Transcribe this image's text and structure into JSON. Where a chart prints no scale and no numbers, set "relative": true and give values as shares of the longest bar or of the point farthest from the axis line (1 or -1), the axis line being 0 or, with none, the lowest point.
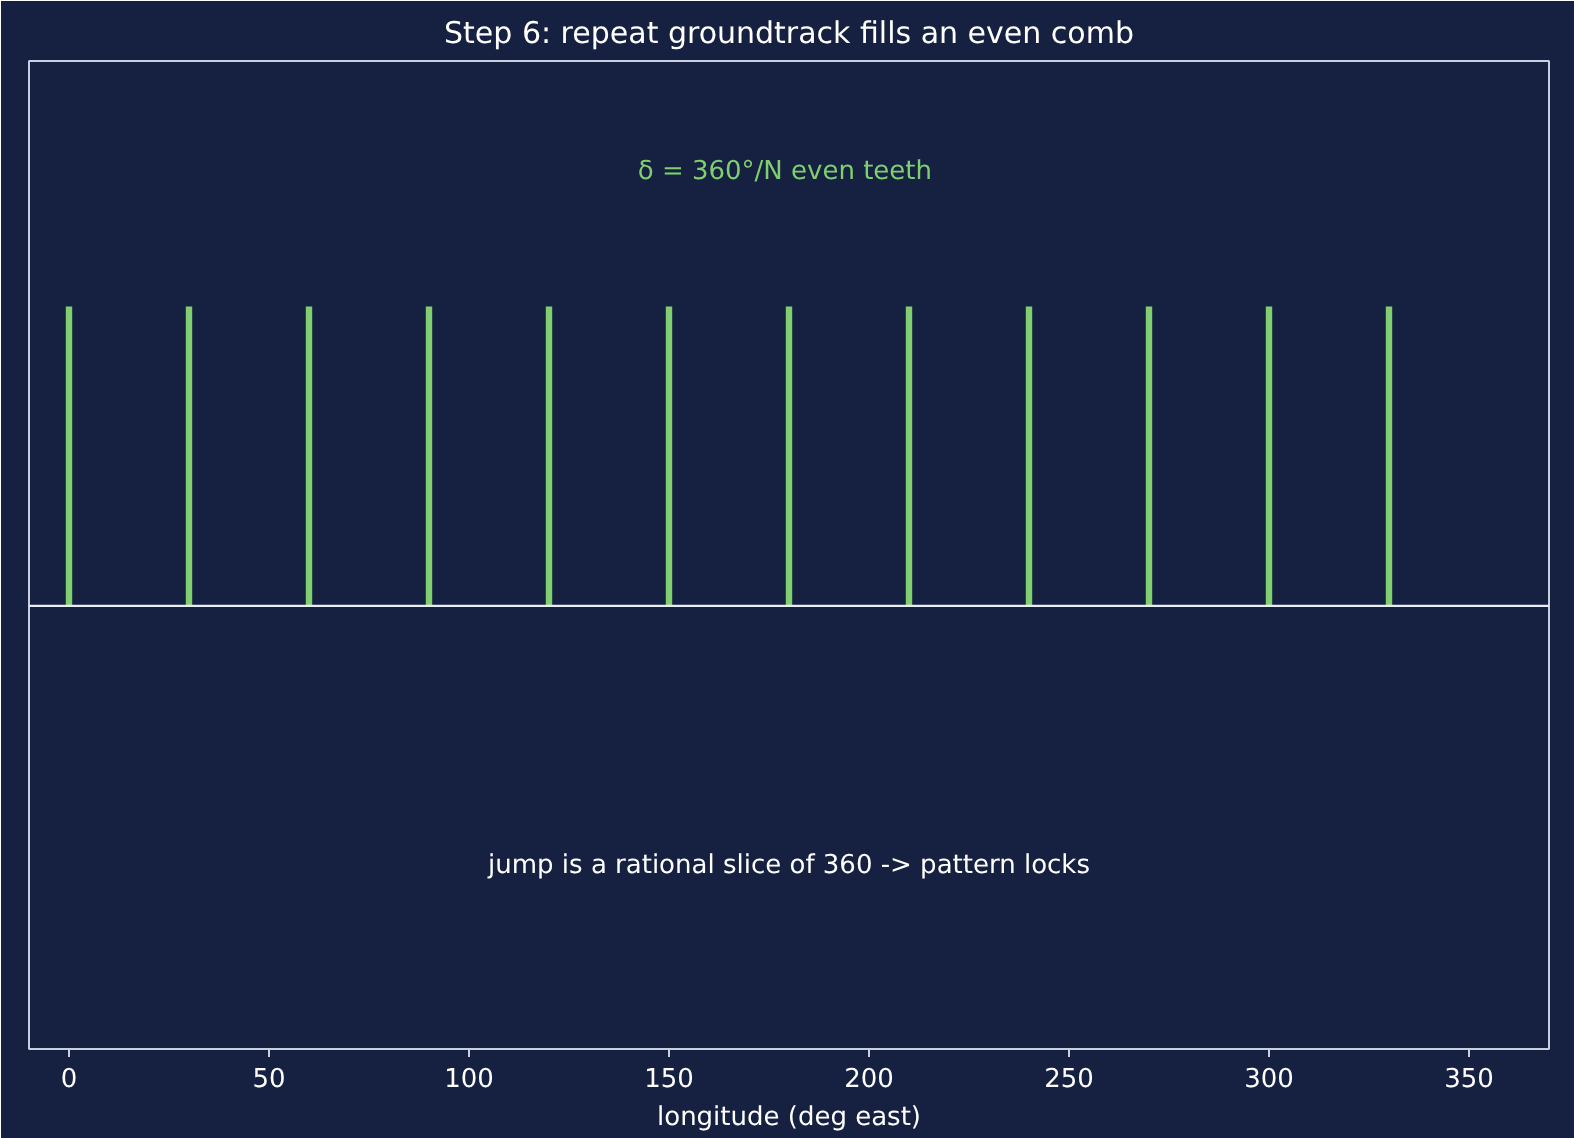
{
  "chart_data": {
    "type": "bar",
    "title": "Step 6: repeat groundtrack fills an even comb",
    "xlabel": "longitude (deg east)",
    "x": [
      0,
      30,
      60,
      90,
      120,
      150,
      180,
      210,
      240,
      270,
      300,
      330
    ],
    "values": [
      1,
      1,
      1,
      1,
      1,
      1,
      1,
      1,
      1,
      1,
      1,
      1
    ],
    "relative": true,
    "color": "#7fcf6f",
    "xlim": [
      -10,
      370
    ],
    "xticks": [
      0,
      50,
      100,
      150,
      200,
      250,
      300,
      350
    ],
    "ref_lines": [
      {
        "axis": "y",
        "value": 0,
        "color": "#e8ecf4"
      }
    ],
    "annotations": [
      "δ = 360°/N  even teeth",
      "jump is a rational slice of 360 -> pattern locks"
    ],
    "grid": false
  }
}
